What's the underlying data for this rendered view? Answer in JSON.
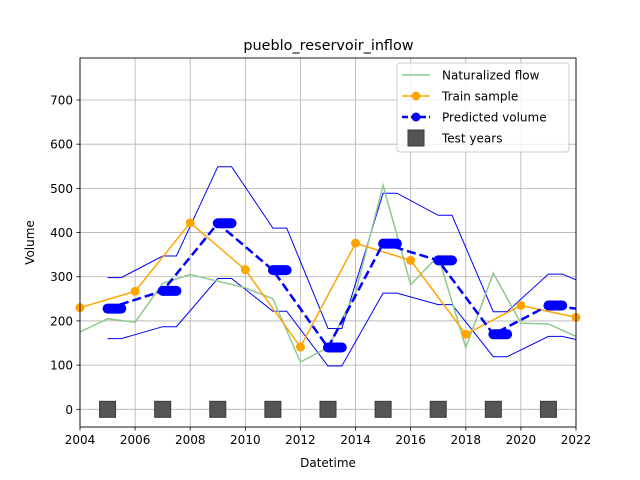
{
  "chart_data": {
    "type": "line",
    "title": "pueblo_reservoir_inflow",
    "xlabel": "Datetime",
    "ylabel": "Volume",
    "xlim": [
      2004,
      2022
    ],
    "ylim": [
      -40,
      795
    ],
    "x_ticks": [
      2004,
      2006,
      2008,
      2010,
      2012,
      2014,
      2016,
      2018,
      2020,
      2022
    ],
    "y_ticks": [
      0,
      100,
      200,
      300,
      400,
      500,
      600,
      700
    ],
    "grid": true,
    "legend_position": "top-right",
    "colors": {
      "naturalized": "#8fc98f",
      "train": "#ffa500",
      "predicted": "#0000ff",
      "interval": "#0000ff",
      "test": "#555555"
    },
    "series": [
      {
        "name": "Naturalized flow",
        "style": "line",
        "x": [
          2004,
          2005,
          2006,
          2007,
          2008,
          2009,
          2010,
          2011,
          2012,
          2013,
          2014,
          2015,
          2016,
          2017,
          2018,
          2019,
          2020,
          2021,
          2022
        ],
        "values": [
          175,
          205,
          197,
          285,
          305,
          290,
          275,
          250,
          107,
          140,
          265,
          507,
          282,
          347,
          140,
          308,
          195,
          193,
          165
        ]
      },
      {
        "name": "Train sample",
        "style": "line-marker",
        "x": [
          2004,
          2006,
          2008,
          2010,
          2012,
          2014,
          2016,
          2018,
          2020,
          2022
        ],
        "values": [
          230,
          267,
          422,
          316,
          141,
          376,
          337,
          170,
          235,
          208
        ]
      },
      {
        "name": "Predicted volume",
        "style": "dashed-marker",
        "x": [
          2005,
          2007,
          2009,
          2011,
          2013,
          2015,
          2017,
          2019,
          2021,
          2022
        ],
        "values": [
          228,
          268,
          421,
          315,
          140,
          375,
          337,
          170,
          235,
          228
        ]
      },
      {
        "name": "Test years",
        "style": "square-marker",
        "x": [
          2005,
          2007,
          2009,
          2011,
          2013,
          2015,
          2017,
          2019,
          2021
        ],
        "values": [
          0,
          0,
          0,
          0,
          0,
          0,
          0,
          0,
          0
        ]
      }
    ],
    "interval": {
      "x": [
        2005,
        2005.5,
        2007,
        2007.5,
        2009,
        2009.5,
        2011,
        2011.5,
        2013,
        2013.5,
        2015,
        2015.5,
        2017,
        2017.5,
        2019,
        2019.5,
        2021,
        2021.5,
        2022
      ],
      "upper": [
        298,
        298,
        347,
        347,
        549,
        549,
        410,
        410,
        183,
        183,
        489,
        489,
        439,
        439,
        221,
        221,
        306,
        306,
        293
      ],
      "lower": [
        160,
        160,
        187,
        187,
        296,
        296,
        222,
        222,
        98,
        98,
        263,
        263,
        237,
        237,
        119,
        119,
        165,
        165,
        158
      ]
    }
  }
}
